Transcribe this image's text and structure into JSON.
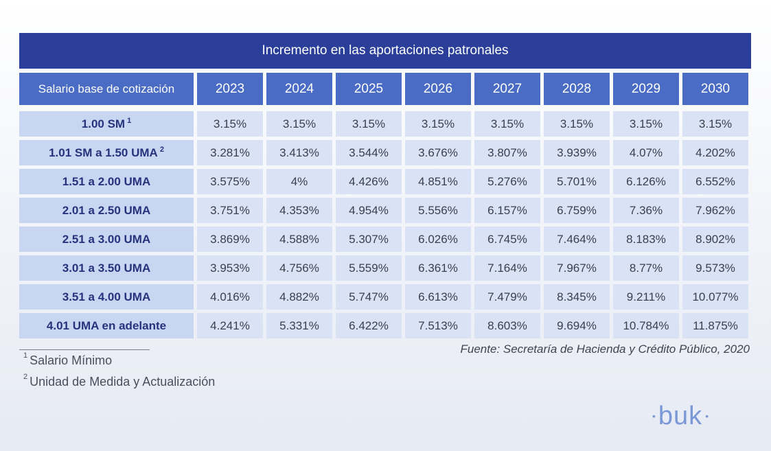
{
  "title": "Incremento en las aportaciones patronales",
  "header": {
    "first": "Salario base de cotización",
    "years": [
      "2023",
      "2024",
      "2025",
      "2026",
      "2027",
      "2028",
      "2029",
      "2030"
    ]
  },
  "rows": [
    {
      "label": "1.00 SM",
      "sup": "1",
      "values": [
        "3.15%",
        "3.15%",
        "3.15%",
        "3.15%",
        "3.15%",
        "3.15%",
        "3.15%",
        "3.15%"
      ]
    },
    {
      "label": "1.01 SM a 1.50 UMA",
      "sup": "2",
      "values": [
        "3.281%",
        "3.413%",
        "3.544%",
        "3.676%",
        "3.807%",
        "3.939%",
        "4.07%",
        "4.202%"
      ]
    },
    {
      "label": "1.51 a 2.00 UMA",
      "sup": "",
      "values": [
        "3.575%",
        "4%",
        "4.426%",
        "4.851%",
        "5.276%",
        "5.701%",
        "6.126%",
        "6.552%"
      ]
    },
    {
      "label": "2.01 a 2.50 UMA",
      "sup": "",
      "values": [
        "3.751%",
        "4.353%",
        "4.954%",
        "5.556%",
        "6.157%",
        "6.759%",
        "7.36%",
        "7.962%"
      ]
    },
    {
      "label": "2.51 a 3.00 UMA",
      "sup": "",
      "values": [
        "3.869%",
        "4.588%",
        "5.307%",
        "6.026%",
        "6.745%",
        "7.464%",
        "8.183%",
        "8.902%"
      ]
    },
    {
      "label": "3.01 a 3.50 UMA",
      "sup": "",
      "values": [
        "3.953%",
        "4.756%",
        "5.559%",
        "6.361%",
        "7.164%",
        "7.967%",
        "8.77%",
        "9.573%"
      ]
    },
    {
      "label": "3.51 a 4.00 UMA",
      "sup": "",
      "values": [
        "4.016%",
        "4.882%",
        "5.747%",
        "6.613%",
        "7.479%",
        "8.345%",
        "9.211%",
        "10.077%"
      ]
    },
    {
      "label": "4.01 UMA en adelante",
      "sup": "",
      "values": [
        "4.241%",
        "5.331%",
        "6.422%",
        "7.513%",
        "8.603%",
        "9.694%",
        "10.784%",
        "11.875%"
      ]
    }
  ],
  "footnotes": [
    {
      "num": "1",
      "text": "Salario Mínimo"
    },
    {
      "num": "2",
      "text": "Unidad de Medida y Actualización"
    }
  ],
  "source": "Fuente: Secretaría de Hacienda y Crédito Público, 2020",
  "logo": {
    "text": "buk",
    "left_dot": "•",
    "right_dot": "•"
  }
}
